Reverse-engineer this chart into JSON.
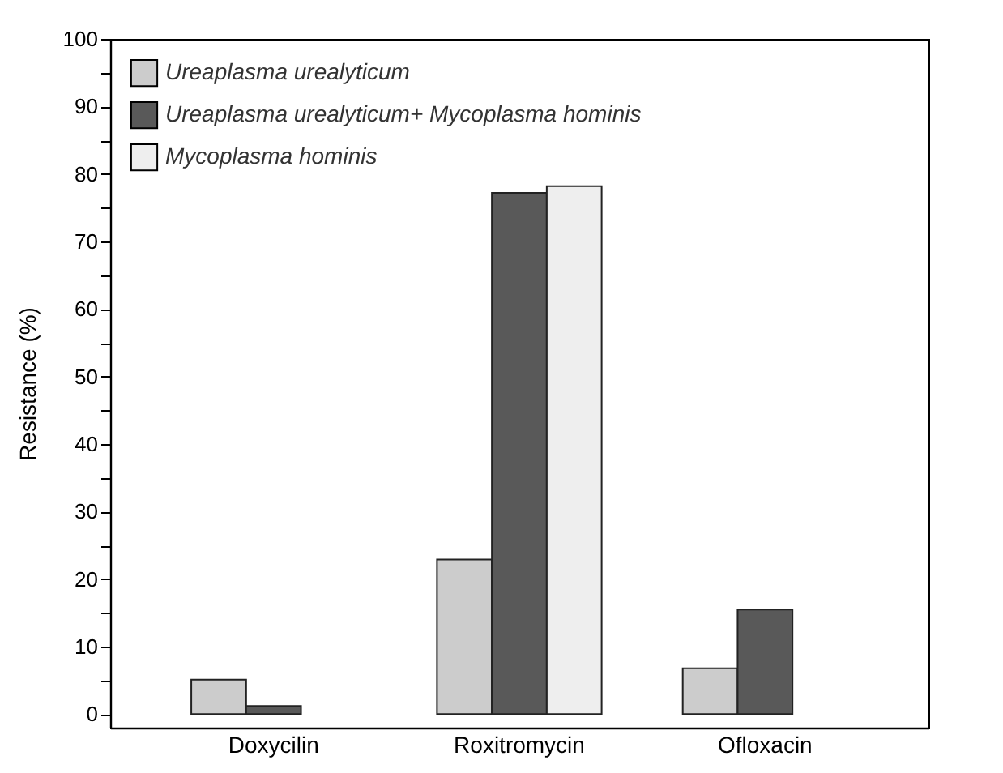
{
  "chart_data": {
    "type": "bar",
    "ylabel": "Resistance (%)",
    "categories": [
      "Doxycilin",
      "Roxitromycin",
      "Ofloxacin"
    ],
    "series": [
      {
        "name": "Ureaplasma urealyticum",
        "color": "#cccccc",
        "values": [
          5.1,
          22.9,
          6.8
        ]
      },
      {
        "name": "Ureaplasma urealyticum+ Mycoplasma hominis",
        "color": "#595959",
        "values": [
          1.2,
          77.2,
          15.5
        ]
      },
      {
        "name": "Mycoplasma hominis",
        "color": "#eeeeee",
        "values": [
          0,
          78.2,
          0
        ]
      }
    ],
    "ylim": [
      -2,
      100
    ],
    "yticks": [
      0,
      {
        "value": 5,
        "label": null
      },
      10,
      {
        "value": 15,
        "label": null
      },
      20,
      {
        "value": 25,
        "label": null
      },
      30,
      {
        "value": 35,
        "label": null
      },
      40,
      {
        "value": 45,
        "label": null
      },
      50,
      {
        "value": 55,
        "label": null
      },
      60,
      {
        "value": 65,
        "label": null
      },
      70,
      {
        "value": 75,
        "label": null
      },
      80,
      {
        "value": 85,
        "label": null
      },
      90,
      {
        "value": 95,
        "label": null
      },
      100
    ],
    "grid": false,
    "legend": "top left"
  }
}
